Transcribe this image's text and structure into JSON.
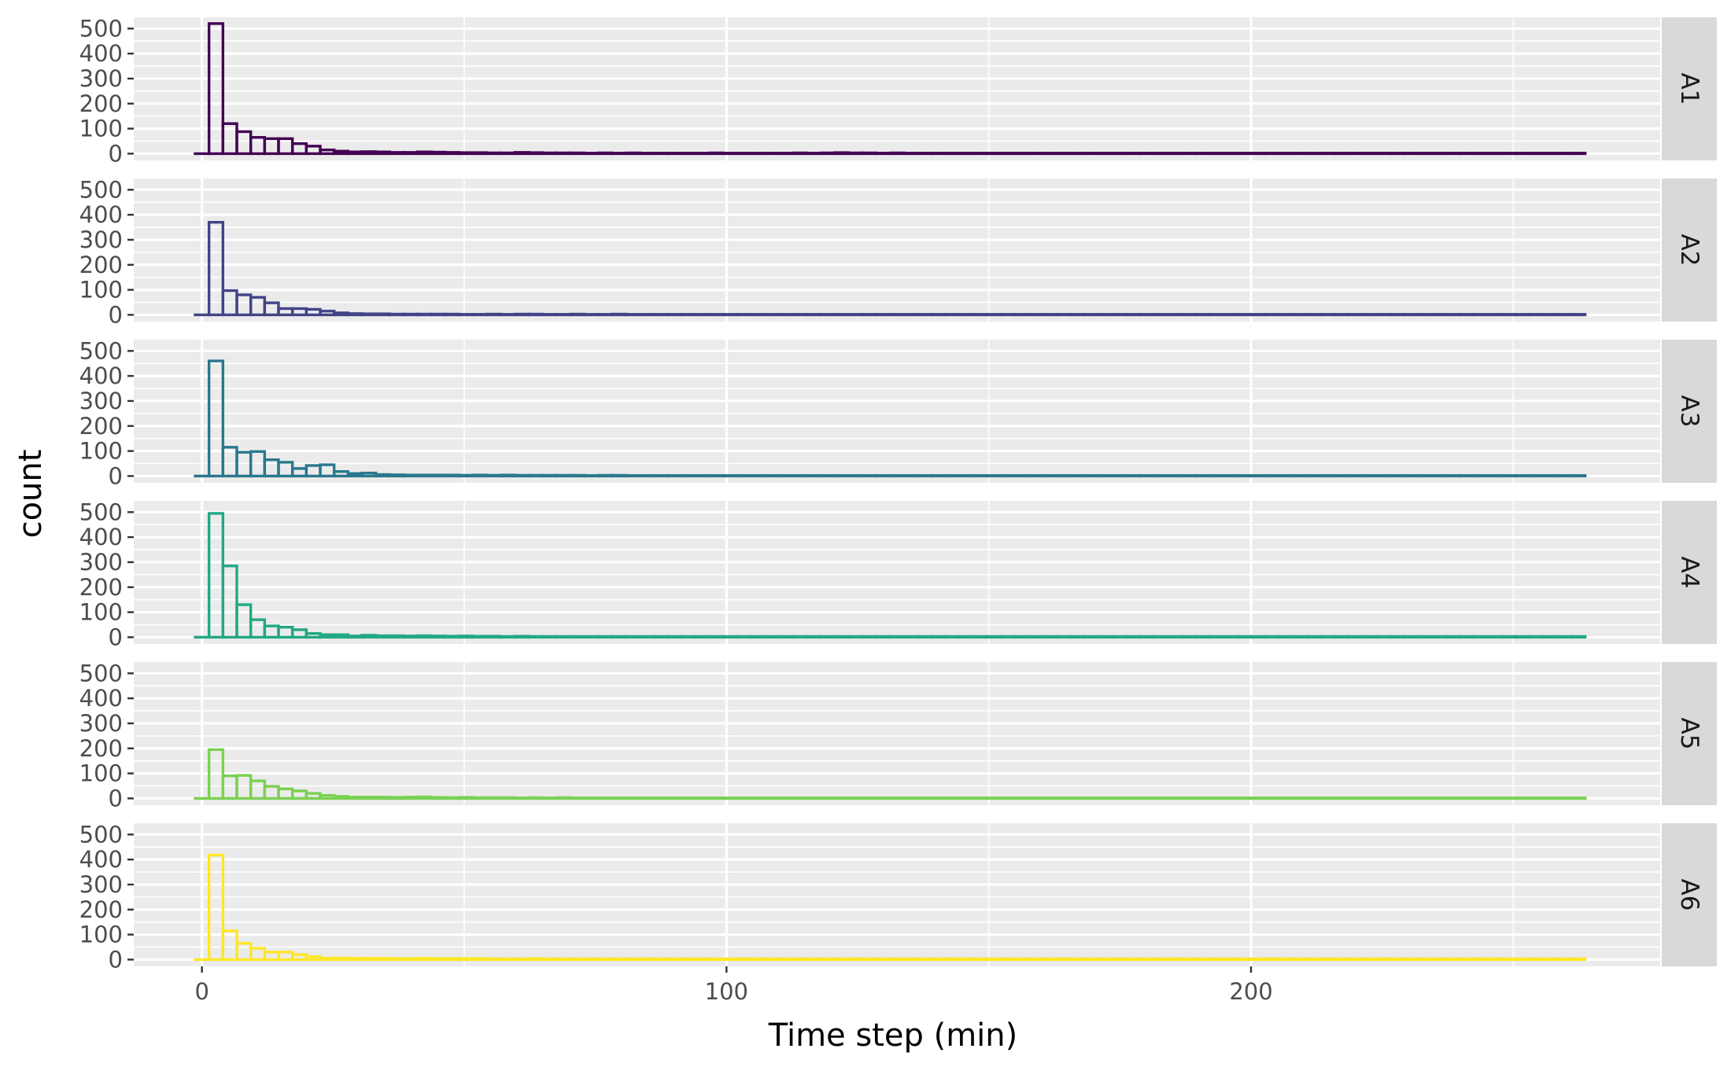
{
  "chart_data": {
    "type": "histogram-faceted",
    "xlabel": "Time step (min)",
    "ylabel": "count",
    "xlim": [
      -13,
      278
    ],
    "ylim": [
      -27,
      545
    ],
    "x_ticks": [
      0,
      100,
      200
    ],
    "y_ticks": [
      0,
      100,
      200,
      300,
      400,
      500
    ],
    "bin_width": 2.65,
    "bin_start": -1.3,
    "x_max": 265.6,
    "grid": true,
    "facets": [
      {
        "name": "A1",
        "color": "#440154",
        "values": [
          0,
          520,
          120,
          88,
          65,
          60,
          60,
          40,
          30,
          15,
          10,
          7,
          8,
          7,
          5,
          5,
          7,
          6,
          5,
          4,
          4,
          3,
          3,
          5,
          4,
          3,
          3,
          3,
          2,
          3,
          2,
          3,
          2,
          2,
          2,
          2,
          2,
          3,
          2,
          2,
          2,
          2,
          2,
          3,
          2,
          3,
          4,
          3,
          3,
          2,
          3,
          2,
          2,
          2,
          2,
          2,
          2,
          2,
          2,
          2,
          2,
          2,
          2,
          2,
          2,
          2,
          2,
          2,
          2,
          2,
          2,
          2,
          2,
          2,
          2,
          2,
          2,
          2,
          2,
          2,
          2,
          2,
          2,
          2,
          2,
          2,
          2,
          2,
          2,
          2,
          2,
          2,
          2,
          2,
          2,
          2,
          2,
          2,
          2,
          2
        ]
      },
      {
        "name": "A2",
        "color": "#414487",
        "values": [
          0,
          370,
          97,
          80,
          70,
          48,
          25,
          25,
          22,
          15,
          8,
          5,
          4,
          4,
          3,
          3,
          3,
          3,
          3,
          2,
          2,
          3,
          2,
          3,
          3,
          2,
          2,
          3,
          2,
          2,
          3,
          2,
          2,
          2,
          2,
          2,
          2,
          2,
          2,
          2,
          2,
          2,
          2,
          2,
          2,
          2,
          2,
          2,
          2,
          2,
          2,
          2,
          2,
          2,
          2,
          2,
          2,
          2,
          2,
          2,
          2,
          2,
          2,
          2,
          2,
          2,
          2,
          2,
          2,
          2,
          2,
          2,
          2,
          2,
          2,
          2,
          2,
          2,
          2,
          2,
          2,
          2,
          2,
          2,
          2,
          2,
          2,
          2,
          2,
          2,
          2,
          2,
          2,
          2,
          2,
          2,
          2,
          2,
          2,
          2
        ]
      },
      {
        "name": "A3",
        "color": "#2A788E",
        "values": [
          0,
          460,
          115,
          95,
          98,
          65,
          55,
          30,
          42,
          45,
          18,
          10,
          12,
          6,
          5,
          4,
          4,
          4,
          4,
          3,
          4,
          3,
          4,
          3,
          3,
          3,
          3,
          3,
          2,
          3,
          3,
          2,
          2,
          2,
          2,
          2,
          2,
          2,
          2,
          2,
          2,
          2,
          2,
          2,
          2,
          2,
          2,
          2,
          2,
          2,
          2,
          2,
          2,
          2,
          2,
          2,
          2,
          2,
          2,
          2,
          2,
          2,
          2,
          2,
          2,
          2,
          2,
          2,
          2,
          2,
          2,
          2,
          2,
          2,
          2,
          2,
          2,
          2,
          2,
          2,
          2,
          2,
          2,
          2,
          2,
          2,
          2,
          2,
          2,
          2,
          2,
          2,
          2,
          2,
          2,
          2,
          2,
          2,
          2,
          2
        ]
      },
      {
        "name": "A4",
        "color": "#22A884",
        "values": [
          0,
          495,
          285,
          130,
          70,
          45,
          40,
          30,
          15,
          10,
          10,
          5,
          8,
          6,
          6,
          5,
          6,
          5,
          4,
          5,
          4,
          4,
          3,
          4,
          3,
          3,
          3,
          3,
          3,
          3,
          3,
          3,
          3,
          3,
          3,
          3,
          3,
          3,
          3,
          3,
          3,
          3,
          3,
          3,
          3,
          3,
          3,
          3,
          3,
          3,
          3,
          3,
          3,
          3,
          3,
          3,
          3,
          3,
          3,
          3,
          3,
          3,
          3,
          3,
          3,
          3,
          3,
          3,
          3,
          3,
          3,
          3,
          3,
          3,
          3,
          3,
          3,
          3,
          3,
          3,
          3,
          3,
          3,
          3,
          3,
          3,
          3,
          3,
          3,
          3,
          3,
          3,
          3,
          3,
          3,
          3,
          3,
          3,
          3,
          3
        ]
      },
      {
        "name": "A5",
        "color": "#7AD151",
        "values": [
          0,
          195,
          90,
          92,
          70,
          48,
          38,
          30,
          20,
          12,
          8,
          5,
          5,
          5,
          4,
          5,
          6,
          4,
          3,
          4,
          3,
          3,
          3,
          2,
          3,
          2,
          3,
          2,
          2,
          2,
          2,
          2,
          2,
          2,
          2,
          2,
          2,
          2,
          2,
          2,
          2,
          2,
          2,
          2,
          2,
          2,
          2,
          2,
          2,
          2,
          2,
          2,
          2,
          2,
          2,
          2,
          2,
          2,
          2,
          2,
          2,
          2,
          2,
          2,
          2,
          2,
          2,
          2,
          2,
          2,
          2,
          2,
          2,
          2,
          2,
          2,
          2,
          2,
          2,
          2,
          2,
          2,
          2,
          2,
          2,
          2,
          2,
          2,
          2,
          2,
          2,
          2,
          2,
          2,
          2,
          2,
          2,
          2,
          2,
          2
        ]
      },
      {
        "name": "A6",
        "color": "#FDE725",
        "values": [
          0,
          418,
          115,
          65,
          45,
          30,
          30,
          20,
          12,
          6,
          6,
          5,
          5,
          5,
          4,
          4,
          5,
          4,
          4,
          4,
          4,
          3,
          3,
          3,
          4,
          3,
          3,
          3,
          3,
          3,
          3,
          3,
          3,
          3,
          3,
          3,
          3,
          3,
          3,
          3,
          3,
          3,
          3,
          3,
          3,
          3,
          3,
          3,
          3,
          3,
          3,
          3,
          3,
          3,
          3,
          3,
          3,
          3,
          3,
          3,
          3,
          3,
          3,
          3,
          3,
          3,
          3,
          3,
          3,
          3,
          3,
          3,
          3,
          3,
          3,
          3,
          3,
          3,
          3,
          3,
          3,
          3,
          3,
          3,
          3,
          3,
          3,
          3,
          3,
          3,
          3,
          3,
          3,
          3,
          3,
          3,
          3,
          3,
          3,
          3
        ]
      }
    ]
  }
}
